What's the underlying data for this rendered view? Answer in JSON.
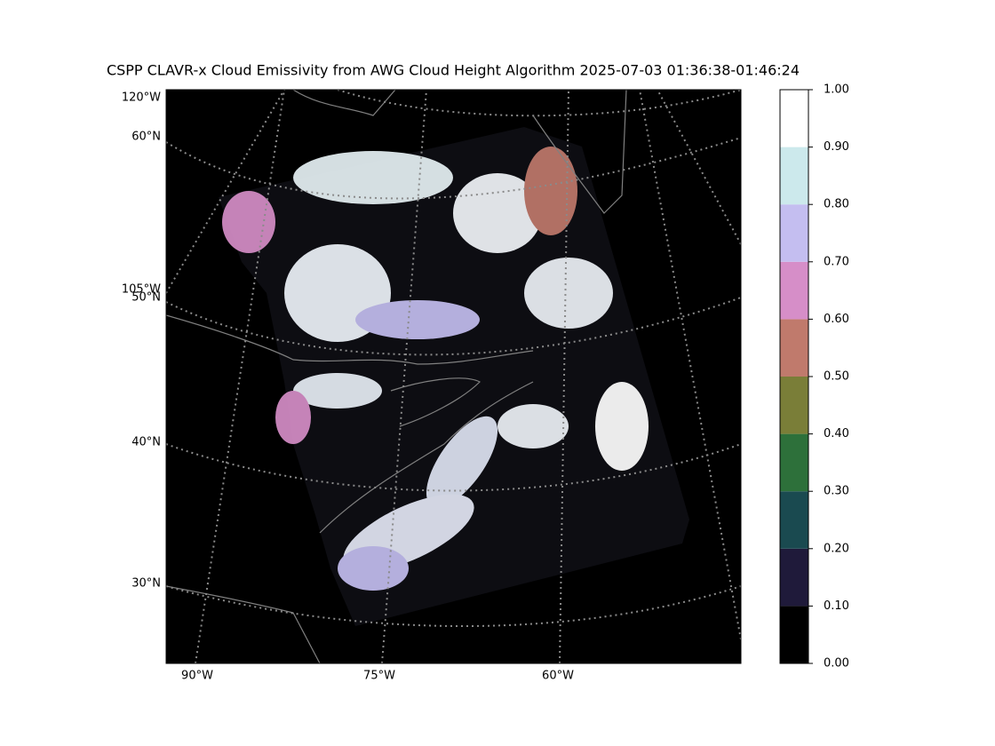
{
  "title": "CSPP CLAVR-x Cloud Emissivity from AWG Cloud Height Algorithm 2025-07-03 01:36:38-01:46:24",
  "map": {
    "left_labels": [
      "120°W",
      "60°N",
      "105°W",
      "50°N",
      "40°N",
      "30°N"
    ],
    "bottom_labels": [
      "90°W",
      "75°W",
      "60°W"
    ]
  },
  "colorbar": {
    "lim": [
      0,
      1
    ],
    "ticks": [
      {
        "value": 0,
        "label": "0.00"
      },
      {
        "value": 0.1,
        "label": "0.10"
      },
      {
        "value": 0.2,
        "label": "0.20"
      },
      {
        "value": 0.3,
        "label": "0.30"
      },
      {
        "value": 0.4,
        "label": "0.40"
      },
      {
        "value": 0.5,
        "label": "0.50"
      },
      {
        "value": 0.6,
        "label": "0.60"
      },
      {
        "value": 0.7,
        "label": "0.70"
      },
      {
        "value": 0.8,
        "label": "0.80"
      },
      {
        "value": 0.9,
        "label": "0.90"
      },
      {
        "value": 1,
        "label": "1.00"
      }
    ],
    "colors": [
      "#000000",
      "#1f1a3a",
      "#1a4a50",
      "#2d703a",
      "#7a7e38",
      "#c07a6c",
      "#d68ec8",
      "#c4bef0",
      "#cce9ec",
      "#ffffff"
    ]
  }
}
